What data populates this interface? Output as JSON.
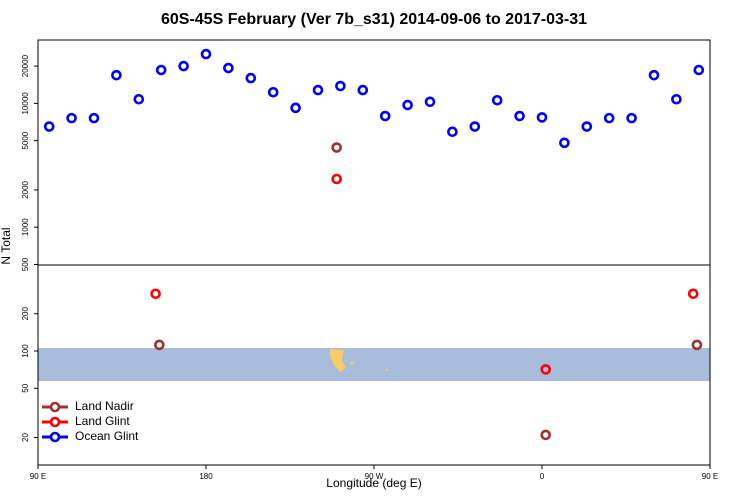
{
  "chart_data": {
    "type": "scatter",
    "title": "60S-45S February (Ver 7b_s31)   2014-09-06 to 2017-03-31",
    "xlabel": "Longitude (deg E)",
    "ylabel": "N Total",
    "xlim": [
      90,
      450
    ],
    "xticks": [
      {
        "value": 90,
        "label": "90 E"
      },
      {
        "value": 180,
        "label": "180"
      },
      {
        "value": 270,
        "label": "90 W"
      },
      {
        "value": 360,
        "label": "0"
      },
      {
        "value": 450,
        "label": "90 E"
      }
    ],
    "ylim": [
      12,
      32500
    ],
    "log_y": true,
    "yticks": [
      20,
      50,
      100,
      200,
      500,
      1000,
      2000,
      5000,
      10000,
      20000
    ],
    "legend": "lower left",
    "series": [
      {
        "name": "Land Nadir",
        "color": "#a03030",
        "x": [
          250,
          155,
          362,
          443
        ],
        "values": [
          4400,
          112,
          21,
          112
        ]
      },
      {
        "name": "Land Glint",
        "color": "#ff0000",
        "x": [
          250,
          153,
          362,
          441
        ],
        "values": [
          2450,
          290,
          71,
          290
        ]
      },
      {
        "name": "Ocean Glint",
        "color": "#0000ff",
        "x": [
          96,
          108,
          120,
          132,
          144,
          156,
          168,
          180,
          192,
          204,
          216,
          228,
          240,
          252,
          264,
          276,
          288,
          300,
          312,
          324,
          336,
          348,
          360,
          372,
          384,
          396,
          408,
          420,
          432,
          444
        ],
        "values": [
          6500,
          7600,
          7600,
          16900,
          10800,
          18600,
          20000,
          25000,
          19300,
          16000,
          12300,
          9200,
          12800,
          13800,
          12800,
          7900,
          9700,
          10300,
          5900,
          6500,
          10600,
          7900,
          7700,
          4800,
          6500,
          7600,
          7600,
          16900,
          10800,
          18600
        ]
      }
    ]
  }
}
